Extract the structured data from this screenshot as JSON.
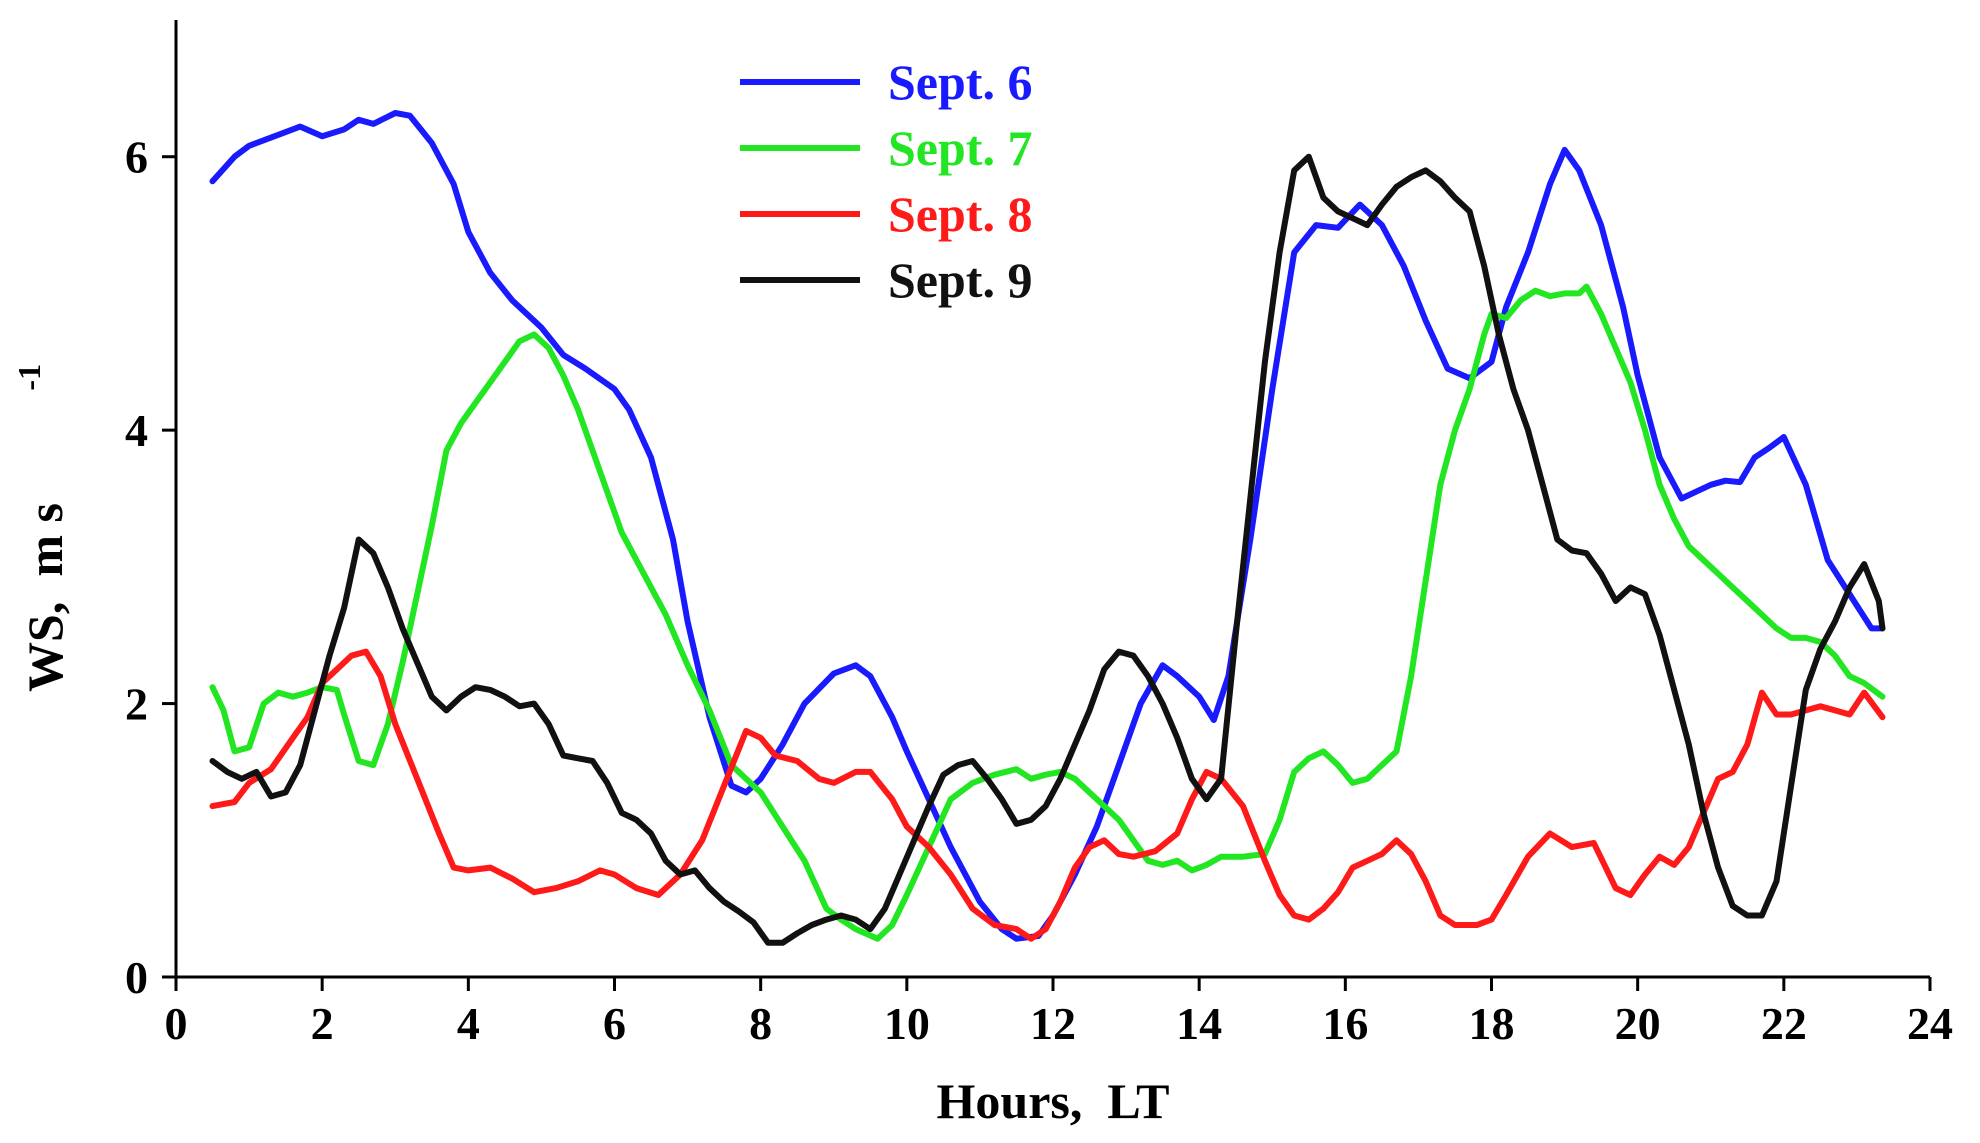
{
  "chart_data": {
    "type": "line",
    "title": "",
    "xlabel": "Hours,  LT",
    "ylabel": "WS,  m s",
    "ylabel_superscript": "-1",
    "xlim": [
      0,
      24
    ],
    "ylim": [
      0,
      7
    ],
    "xticks": [
      0,
      2,
      4,
      6,
      8,
      10,
      12,
      14,
      16,
      18,
      20,
      22,
      24
    ],
    "yticks": [
      0,
      2,
      4,
      6
    ],
    "legend_position": "top-center",
    "grid": false,
    "series": [
      {
        "name": "Sept. 6",
        "color": "#1a1aff",
        "x": [
          0.5,
          0.8,
          1.0,
          1.3,
          1.7,
          2.0,
          2.3,
          2.5,
          2.7,
          3.0,
          3.2,
          3.5,
          3.8,
          4.0,
          4.3,
          4.6,
          5.0,
          5.3,
          5.6,
          6.0,
          6.2,
          6.5,
          6.8,
          7.0,
          7.3,
          7.6,
          7.8,
          8.0,
          8.3,
          8.6,
          9.0,
          9.3,
          9.5,
          9.8,
          10.0,
          10.3,
          10.6,
          11.0,
          11.3,
          11.5,
          11.8,
          12.0,
          12.3,
          12.6,
          12.9,
          13.2,
          13.5,
          13.7,
          14.0,
          14.2,
          14.4,
          14.7,
          15.0,
          15.3,
          15.6,
          15.9,
          16.2,
          16.5,
          16.8,
          17.1,
          17.4,
          17.7,
          18.0,
          18.2,
          18.5,
          18.8,
          19.0,
          19.2,
          19.5,
          19.8,
          20.0,
          20.3,
          20.6,
          20.8,
          21.0,
          21.2,
          21.4,
          21.6,
          21.8,
          22.0,
          22.3,
          22.6,
          22.9,
          23.2,
          23.35
        ],
        "values": [
          5.82,
          6.0,
          6.08,
          6.14,
          6.22,
          6.15,
          6.2,
          6.27,
          6.24,
          6.32,
          6.3,
          6.1,
          5.8,
          5.45,
          5.15,
          4.95,
          4.75,
          4.55,
          4.45,
          4.3,
          4.15,
          3.8,
          3.2,
          2.6,
          1.9,
          1.4,
          1.35,
          1.45,
          1.7,
          2.0,
          2.22,
          2.28,
          2.2,
          1.9,
          1.65,
          1.3,
          0.95,
          0.55,
          0.35,
          0.28,
          0.3,
          0.45,
          0.75,
          1.1,
          1.55,
          2.0,
          2.28,
          2.2,
          2.05,
          1.88,
          2.2,
          3.2,
          4.3,
          5.3,
          5.5,
          5.48,
          5.65,
          5.5,
          5.2,
          4.8,
          4.45,
          4.38,
          4.5,
          4.9,
          5.3,
          5.8,
          6.05,
          5.9,
          5.5,
          4.9,
          4.4,
          3.8,
          3.5,
          3.55,
          3.6,
          3.63,
          3.62,
          3.8,
          3.87,
          3.95,
          3.6,
          3.05,
          2.8,
          2.55,
          2.55
        ]
      },
      {
        "name": "Sept. 7",
        "color": "#22e622",
        "x": [
          0.5,
          0.65,
          0.8,
          1.0,
          1.2,
          1.4,
          1.6,
          1.8,
          2.0,
          2.2,
          2.3,
          2.5,
          2.7,
          2.9,
          3.1,
          3.3,
          3.5,
          3.7,
          3.9,
          4.1,
          4.3,
          4.5,
          4.7,
          4.9,
          5.1,
          5.3,
          5.5,
          5.7,
          5.9,
          6.1,
          6.4,
          6.7,
          7.0,
          7.3,
          7.6,
          7.8,
          8.0,
          8.3,
          8.6,
          8.9,
          9.1,
          9.3,
          9.6,
          9.8,
          10.0,
          10.3,
          10.6,
          10.9,
          11.2,
          11.5,
          11.7,
          11.9,
          12.1,
          12.3,
          12.5,
          12.7,
          12.9,
          13.1,
          13.3,
          13.5,
          13.7,
          13.9,
          14.1,
          14.3,
          14.6,
          14.9,
          15.1,
          15.3,
          15.5,
          15.7,
          15.9,
          16.1,
          16.3,
          16.5,
          16.7,
          16.9,
          17.1,
          17.3,
          17.5,
          17.7,
          17.9,
          18.0,
          18.2,
          18.4,
          18.6,
          18.8,
          19.0,
          19.2,
          19.3,
          19.5,
          19.7,
          19.9,
          20.1,
          20.3,
          20.5,
          20.7,
          20.9,
          21.1,
          21.3,
          21.5,
          21.7,
          21.9,
          22.1,
          22.3,
          22.5,
          22.7,
          22.9,
          23.1,
          23.35
        ],
        "values": [
          2.12,
          1.95,
          1.65,
          1.68,
          2.0,
          2.08,
          2.05,
          2.08,
          2.12,
          2.1,
          1.92,
          1.58,
          1.55,
          1.85,
          2.3,
          2.8,
          3.3,
          3.85,
          4.05,
          4.2,
          4.35,
          4.5,
          4.65,
          4.7,
          4.6,
          4.4,
          4.15,
          3.85,
          3.55,
          3.25,
          2.95,
          2.65,
          2.28,
          1.95,
          1.55,
          1.45,
          1.35,
          1.1,
          0.85,
          0.5,
          0.42,
          0.35,
          0.28,
          0.38,
          0.6,
          0.95,
          1.3,
          1.42,
          1.48,
          1.52,
          1.45,
          1.48,
          1.5,
          1.45,
          1.35,
          1.25,
          1.15,
          1.0,
          0.85,
          0.82,
          0.85,
          0.78,
          0.82,
          0.88,
          0.88,
          0.9,
          1.15,
          1.5,
          1.6,
          1.65,
          1.55,
          1.42,
          1.45,
          1.55,
          1.65,
          2.2,
          2.9,
          3.6,
          4.0,
          4.3,
          4.7,
          4.85,
          4.82,
          4.95,
          5.02,
          4.98,
          5.0,
          5.0,
          5.05,
          4.85,
          4.6,
          4.35,
          4.0,
          3.6,
          3.35,
          3.15,
          3.05,
          2.95,
          2.85,
          2.75,
          2.65,
          2.55,
          2.48,
          2.48,
          2.45,
          2.35,
          2.2,
          2.15,
          2.05
        ]
      },
      {
        "name": "Sept. 8",
        "color": "#ff1a1a",
        "x": [
          0.5,
          0.8,
          1.0,
          1.3,
          1.6,
          1.8,
          2.0,
          2.2,
          2.4,
          2.6,
          2.8,
          3.0,
          3.3,
          3.6,
          3.8,
          4.0,
          4.3,
          4.6,
          4.9,
          5.2,
          5.5,
          5.8,
          6.0,
          6.3,
          6.6,
          6.9,
          7.2,
          7.5,
          7.8,
          8.0,
          8.2,
          8.5,
          8.8,
          9.0,
          9.3,
          9.5,
          9.8,
          10.0,
          10.3,
          10.6,
          10.9,
          11.2,
          11.5,
          11.7,
          11.9,
          12.1,
          12.3,
          12.5,
          12.7,
          12.9,
          13.1,
          13.4,
          13.7,
          13.9,
          14.1,
          14.3,
          14.6,
          14.9,
          15.1,
          15.3,
          15.5,
          15.7,
          15.9,
          16.1,
          16.3,
          16.5,
          16.7,
          16.9,
          17.1,
          17.3,
          17.5,
          17.8,
          18.0,
          18.2,
          18.5,
          18.8,
          19.1,
          19.4,
          19.7,
          19.9,
          20.1,
          20.3,
          20.5,
          20.7,
          20.9,
          21.1,
          21.3,
          21.5,
          21.7,
          21.9,
          22.1,
          22.3,
          22.5,
          22.7,
          22.9,
          23.1,
          23.35
        ],
        "values": [
          1.25,
          1.28,
          1.42,
          1.52,
          1.75,
          1.9,
          2.15,
          2.25,
          2.35,
          2.38,
          2.2,
          1.85,
          1.45,
          1.05,
          0.8,
          0.78,
          0.8,
          0.72,
          0.62,
          0.65,
          0.7,
          0.78,
          0.75,
          0.65,
          0.6,
          0.75,
          1.0,
          1.4,
          1.8,
          1.75,
          1.62,
          1.58,
          1.45,
          1.42,
          1.5,
          1.5,
          1.3,
          1.1,
          0.95,
          0.75,
          0.5,
          0.38,
          0.35,
          0.28,
          0.35,
          0.55,
          0.8,
          0.95,
          1.0,
          0.9,
          0.88,
          0.92,
          1.05,
          1.3,
          1.5,
          1.45,
          1.25,
          0.85,
          0.6,
          0.45,
          0.42,
          0.5,
          0.62,
          0.8,
          0.85,
          0.9,
          1.0,
          0.9,
          0.7,
          0.45,
          0.38,
          0.38,
          0.42,
          0.6,
          0.88,
          1.05,
          0.95,
          0.98,
          0.65,
          0.6,
          0.75,
          0.88,
          0.82,
          0.95,
          1.2,
          1.45,
          1.5,
          1.7,
          2.08,
          1.92,
          1.92,
          1.95,
          1.98,
          1.95,
          1.92,
          2.08,
          1.9
        ]
      },
      {
        "name": "Sept. 9",
        "color": "#111111",
        "x": [
          0.5,
          0.7,
          0.9,
          1.1,
          1.3,
          1.5,
          1.7,
          1.9,
          2.1,
          2.3,
          2.5,
          2.7,
          2.9,
          3.1,
          3.3,
          3.5,
          3.7,
          3.9,
          4.1,
          4.3,
          4.5,
          4.7,
          4.9,
          5.1,
          5.3,
          5.5,
          5.7,
          5.9,
          6.1,
          6.3,
          6.5,
          6.7,
          6.9,
          7.1,
          7.3,
          7.5,
          7.7,
          7.9,
          8.1,
          8.3,
          8.5,
          8.7,
          8.9,
          9.1,
          9.3,
          9.5,
          9.7,
          9.9,
          10.1,
          10.3,
          10.5,
          10.7,
          10.9,
          11.1,
          11.3,
          11.5,
          11.7,
          11.9,
          12.1,
          12.3,
          12.5,
          12.7,
          12.9,
          13.1,
          13.3,
          13.5,
          13.7,
          13.9,
          14.1,
          14.3,
          14.5,
          14.7,
          14.9,
          15.1,
          15.3,
          15.5,
          15.7,
          15.9,
          16.1,
          16.3,
          16.5,
          16.7,
          16.9,
          17.1,
          17.3,
          17.5,
          17.7,
          17.9,
          18.1,
          18.3,
          18.5,
          18.7,
          18.9,
          19.1,
          19.3,
          19.5,
          19.7,
          19.9,
          20.1,
          20.3,
          20.5,
          20.7,
          20.9,
          21.1,
          21.3,
          21.5,
          21.7,
          21.9,
          22.1,
          22.3,
          22.5,
          22.7,
          22.9,
          23.1,
          23.3,
          23.35
        ],
        "values": [
          1.58,
          1.5,
          1.45,
          1.5,
          1.32,
          1.35,
          1.55,
          1.95,
          2.35,
          2.7,
          3.2,
          3.1,
          2.85,
          2.55,
          2.3,
          2.05,
          1.95,
          2.05,
          2.12,
          2.1,
          2.05,
          1.98,
          2.0,
          1.85,
          1.62,
          1.6,
          1.58,
          1.42,
          1.2,
          1.15,
          1.05,
          0.85,
          0.75,
          0.78,
          0.65,
          0.55,
          0.48,
          0.4,
          0.25,
          0.25,
          0.32,
          0.38,
          0.42,
          0.45,
          0.42,
          0.35,
          0.5,
          0.75,
          1.0,
          1.25,
          1.48,
          1.55,
          1.58,
          1.45,
          1.3,
          1.12,
          1.15,
          1.25,
          1.45,
          1.7,
          1.95,
          2.25,
          2.38,
          2.35,
          2.2,
          2.0,
          1.75,
          1.45,
          1.3,
          1.45,
          2.5,
          3.5,
          4.5,
          5.3,
          5.9,
          6.0,
          5.7,
          5.6,
          5.55,
          5.5,
          5.65,
          5.78,
          5.85,
          5.9,
          5.82,
          5.7,
          5.6,
          5.2,
          4.7,
          4.3,
          4.0,
          3.6,
          3.2,
          3.12,
          3.1,
          2.95,
          2.75,
          2.85,
          2.8,
          2.5,
          2.1,
          1.7,
          1.2,
          0.8,
          0.52,
          0.45,
          0.45,
          0.7,
          1.4,
          2.1,
          2.4,
          2.6,
          2.85,
          3.02,
          2.75,
          2.55
        ]
      }
    ]
  }
}
